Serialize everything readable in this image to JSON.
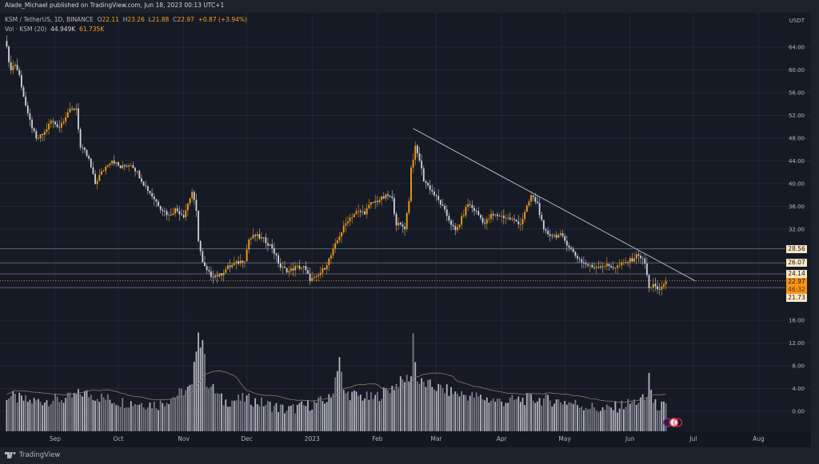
{
  "header": {
    "published": "Alade_Michael published on TradingView.com, Jun 18, 2023 00:13 UTC+1"
  },
  "legend": {
    "symbol": "KSM / TetherUS, 1D, BINANCE",
    "o_label": "O",
    "o": "22.11",
    "h_label": "H",
    "h": "23.26",
    "l_label": "L",
    "l": "21.88",
    "c_label": "C",
    "c": "22.97",
    "change": "+0.87 (+3.94%)",
    "vol_label": "Vol · KSM (20)",
    "vol": "44.949K",
    "vol_ma": "61.735K"
  },
  "footer": {
    "brand": "TradingView"
  },
  "colors": {
    "up": "#f7a21b",
    "down": "#d1d4dc",
    "volume": "#9598a1",
    "volume_ma": "#8d7b60",
    "trendline": "#b2b5be",
    "level": "#5d606b",
    "current": "#f7931a",
    "background": "#161a25",
    "grid": "#232733"
  },
  "price_tags": [
    {
      "value": "28.56"
    },
    {
      "value": "26.07"
    },
    {
      "value": "24.14"
    },
    {
      "value": "22.97",
      "countdown": "46:32",
      "current": true
    },
    {
      "value": "21.73"
    }
  ],
  "event_icons": [
    "lightning-icon",
    "us-flag-icon"
  ],
  "chart_data": {
    "type": "candlestick",
    "currency_label": "USDT",
    "price_ticks": [
      "64.00",
      "60.00",
      "56.00",
      "52.00",
      "48.00",
      "44.00",
      "40.00",
      "36.00",
      "32.00",
      "16.00"
    ],
    "price_tick_values": [
      64,
      60,
      56,
      52,
      48,
      44,
      40,
      36,
      32,
      16
    ],
    "volume_ticks": [
      "12.00",
      "8.00",
      "4.00",
      "0.00"
    ],
    "volume_tick_values": [
      12,
      8,
      4,
      0
    ],
    "x_ticks": [
      {
        "label": "Sep",
        "date": "2022-09-01"
      },
      {
        "label": "Oct",
        "date": "2022-10-01"
      },
      {
        "label": "Nov",
        "date": "2022-11-01"
      },
      {
        "label": "Dec",
        "date": "2022-12-01"
      },
      {
        "label": "2023",
        "date": "2023-01-01"
      },
      {
        "label": "Feb",
        "date": "2023-02-01"
      },
      {
        "label": "Mar",
        "date": "2023-03-01"
      },
      {
        "label": "Apr",
        "date": "2023-04-01"
      },
      {
        "label": "May",
        "date": "2023-05-01"
      },
      {
        "label": "Jun",
        "date": "2023-06-01"
      },
      {
        "label": "Jul",
        "date": "2023-07-01"
      },
      {
        "label": "Aug",
        "date": "2023-08-01"
      }
    ],
    "close_points": [
      [
        "2022-08-09",
        64.5
      ],
      [
        "2022-08-10",
        61
      ],
      [
        "2022-08-11",
        60.3
      ],
      [
        "2022-08-13",
        61
      ],
      [
        "2022-08-15",
        59
      ],
      [
        "2022-08-17",
        55.4
      ],
      [
        "2022-08-19",
        52
      ],
      [
        "2022-08-21",
        50
      ],
      [
        "2022-08-23",
        47.7
      ],
      [
        "2022-08-27",
        49
      ],
      [
        "2022-08-30",
        51
      ],
      [
        "2022-09-03",
        50
      ],
      [
        "2022-09-07",
        52.6
      ],
      [
        "2022-09-11",
        53.3
      ],
      [
        "2022-09-13",
        46.3
      ],
      [
        "2022-09-15",
        45.6
      ],
      [
        "2022-09-17",
        44.2
      ],
      [
        "2022-09-20",
        40
      ],
      [
        "2022-09-22",
        41.4
      ],
      [
        "2022-09-26",
        43.5
      ],
      [
        "2022-09-28",
        44.2
      ],
      [
        "2022-10-02",
        42.8
      ],
      [
        "2022-10-07",
        43.5
      ],
      [
        "2022-10-10",
        42
      ],
      [
        "2022-10-13",
        40
      ],
      [
        "2022-10-17",
        37.9
      ],
      [
        "2022-10-21",
        35.8
      ],
      [
        "2022-10-25",
        34.4
      ],
      [
        "2022-10-28",
        35.5
      ],
      [
        "2022-11-01",
        34.4
      ],
      [
        "2022-11-05",
        38.6
      ],
      [
        "2022-11-07",
        35
      ],
      [
        "2022-11-08",
        30.2
      ],
      [
        "2022-11-10",
        26
      ],
      [
        "2022-11-12",
        24.6
      ],
      [
        "2022-11-14",
        23.9
      ],
      [
        "2022-11-18",
        23.9
      ],
      [
        "2022-11-22",
        25.3
      ],
      [
        "2022-11-26",
        26
      ],
      [
        "2022-11-30",
        26.7
      ],
      [
        "2022-12-02",
        30.2
      ],
      [
        "2022-12-05",
        30.9
      ],
      [
        "2022-12-09",
        30.2
      ],
      [
        "2022-12-13",
        28.8
      ],
      [
        "2022-12-17",
        25.3
      ],
      [
        "2022-12-21",
        24.6
      ],
      [
        "2022-12-24",
        25.3
      ],
      [
        "2022-12-28",
        25.3
      ],
      [
        "2022-12-31",
        23.2
      ],
      [
        "2023-01-03",
        23.4
      ],
      [
        "2023-01-07",
        25.3
      ],
      [
        "2023-01-10",
        27.4
      ],
      [
        "2023-01-14",
        30.9
      ],
      [
        "2023-01-18",
        33.7
      ],
      [
        "2023-01-22",
        35
      ],
      [
        "2023-01-26",
        35
      ],
      [
        "2023-01-29",
        36.5
      ],
      [
        "2023-02-02",
        37.2
      ],
      [
        "2023-02-06",
        37.9
      ],
      [
        "2023-02-08",
        37.2
      ],
      [
        "2023-02-10",
        33
      ],
      [
        "2023-02-14",
        32.3
      ],
      [
        "2023-02-16",
        37.2
      ],
      [
        "2023-02-17",
        42.8
      ],
      [
        "2023-02-19",
        46.3
      ],
      [
        "2023-02-21",
        44.2
      ],
      [
        "2023-02-23",
        40.7
      ],
      [
        "2023-02-27",
        38.6
      ],
      [
        "2023-03-03",
        36.5
      ],
      [
        "2023-03-06",
        34.4
      ],
      [
        "2023-03-10",
        31.6
      ],
      [
        "2023-03-12",
        33
      ],
      [
        "2023-03-16",
        36.5
      ],
      [
        "2023-03-20",
        35
      ],
      [
        "2023-03-24",
        33
      ],
      [
        "2023-03-27",
        34.4
      ],
      [
        "2023-03-31",
        34.4
      ],
      [
        "2023-04-06",
        33.7
      ],
      [
        "2023-04-10",
        33
      ],
      [
        "2023-04-13",
        35.8
      ],
      [
        "2023-04-15",
        37.9
      ],
      [
        "2023-04-18",
        36.5
      ],
      [
        "2023-04-21",
        31.6
      ],
      [
        "2023-04-25",
        30.9
      ],
      [
        "2023-04-29",
        30.9
      ],
      [
        "2023-05-02",
        29.5
      ],
      [
        "2023-05-06",
        27.4
      ],
      [
        "2023-05-10",
        26
      ],
      [
        "2023-05-14",
        25.3
      ],
      [
        "2023-05-18",
        25.6
      ],
      [
        "2023-05-21",
        25.6
      ],
      [
        "2023-05-25",
        25.3
      ],
      [
        "2023-05-29",
        26
      ],
      [
        "2023-06-02",
        26.7
      ],
      [
        "2023-06-05",
        27.6
      ],
      [
        "2023-06-08",
        26
      ],
      [
        "2023-06-09",
        23.9
      ],
      [
        "2023-06-10",
        21.5
      ],
      [
        "2023-06-12",
        22.5
      ],
      [
        "2023-06-14",
        21.1
      ],
      [
        "2023-06-16",
        21.8
      ],
      [
        "2023-06-18",
        22.97
      ]
    ],
    "volume_points": [
      [
        "2022-08-09",
        2.5
      ],
      [
        "2022-08-20",
        1.5
      ],
      [
        "2022-09-07",
        2
      ],
      [
        "2022-09-14",
        3
      ],
      [
        "2022-10-01",
        1.5
      ],
      [
        "2022-10-20",
        1
      ],
      [
        "2022-11-05",
        4
      ],
      [
        "2022-11-08",
        14.6
      ],
      [
        "2022-11-09",
        11
      ],
      [
        "2022-11-10",
        12.8
      ],
      [
        "2022-11-12",
        5
      ],
      [
        "2022-11-20",
        1.5
      ],
      [
        "2022-12-01",
        2
      ],
      [
        "2022-12-20",
        0
      ],
      [
        "2023-01-01",
        1
      ],
      [
        "2023-01-10",
        2
      ],
      [
        "2023-01-14",
        9.4
      ],
      [
        "2023-01-16",
        3
      ],
      [
        "2023-01-30",
        2
      ],
      [
        "2023-02-17",
        6
      ],
      [
        "2023-02-18",
        13.3
      ],
      [
        "2023-02-20",
        5
      ],
      [
        "2023-03-10",
        3
      ],
      [
        "2023-04-01",
        1.5
      ],
      [
        "2023-04-15",
        2
      ],
      [
        "2023-05-01",
        1.5
      ],
      [
        "2023-05-20",
        0
      ],
      [
        "2023-06-09",
        2
      ],
      [
        "2023-06-10",
        6.7
      ],
      [
        "2023-06-12",
        1
      ],
      [
        "2023-06-18",
        0.5
      ]
    ],
    "volume_ma_period": 20,
    "trendline": {
      "from": [
        "2023-02-18",
        49.7
      ],
      "to": [
        "2023-07-02",
        22.9
      ]
    },
    "horizontal_levels": [
      28.56,
      26.07,
      24.14,
      21.73
    ],
    "current_price": 22.97,
    "grid": true
  }
}
